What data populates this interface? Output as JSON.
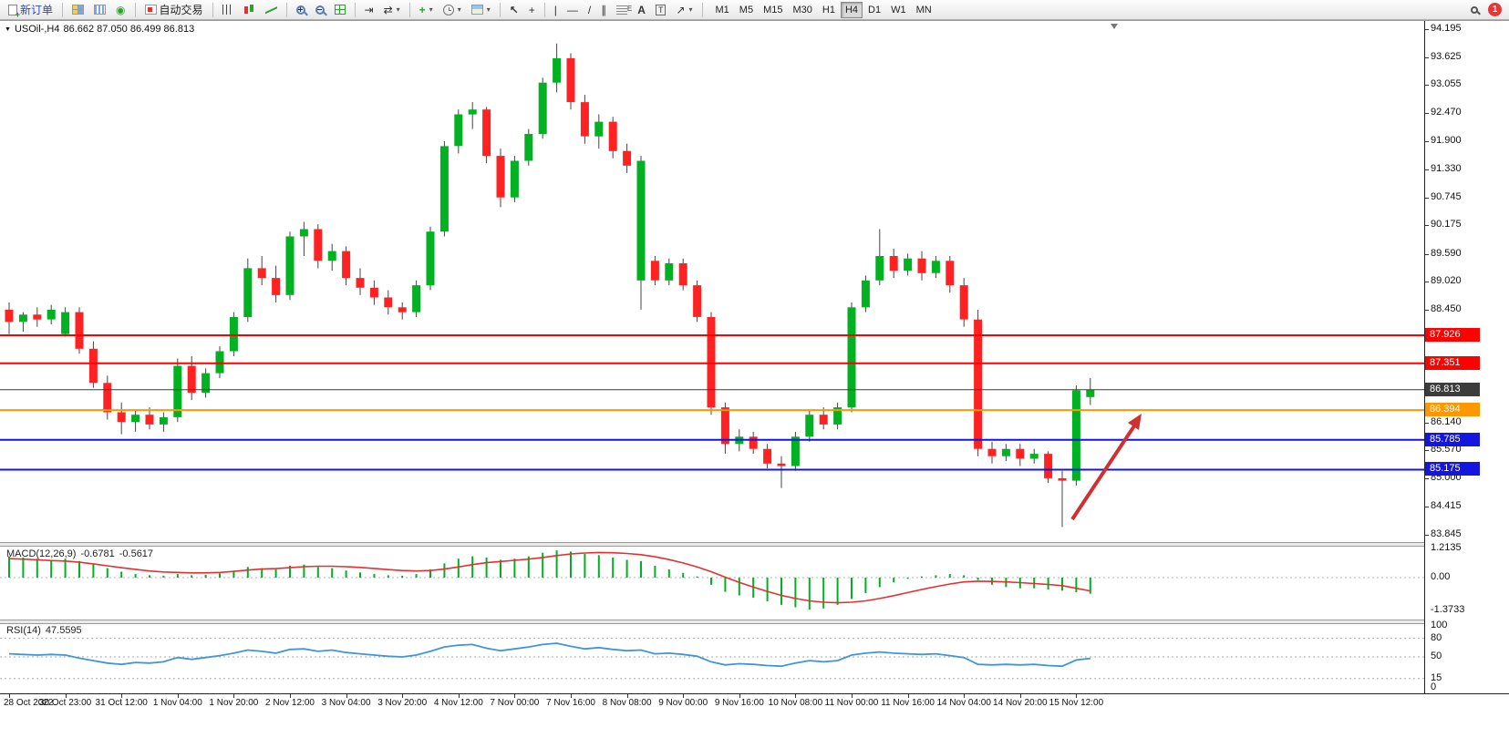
{
  "toolbar": {
    "new_order_label": "新订单",
    "autotrading_label": "自动交易",
    "text_tool_label": "A",
    "label_tool_label": "T",
    "timeframes": [
      "M1",
      "M5",
      "M15",
      "M30",
      "H1",
      "H4",
      "D1",
      "W1",
      "MN"
    ],
    "active_timeframe": "H4",
    "notification_count": "1"
  },
  "chart": {
    "symbol_period": "USOil-,H4",
    "ohlc_text": "86.662 87.050 86.499 86.813"
  },
  "chart_data": {
    "type": "candlestick",
    "symbol": "USOil-",
    "timeframe": "H4",
    "current_bar": {
      "open": 86.662,
      "high": 87.05,
      "low": 86.499,
      "close": 86.813
    },
    "price_axis_labels": [
      "94.195",
      "93.625",
      "93.055",
      "92.470",
      "91.900",
      "91.330",
      "90.745",
      "90.175",
      "89.590",
      "89.020",
      "88.450",
      "86.140",
      "85.570",
      "85.000",
      "84.415",
      "83.845"
    ],
    "time_labels": [
      "28 Oct 2022",
      "30 Oct 23:00",
      "31 Oct 12:00",
      "1 Nov 04:00",
      "1 Nov 20:00",
      "2 Nov 12:00",
      "3 Nov 04:00",
      "3 Nov 20:00",
      "4 Nov 12:00",
      "7 Nov 00:00",
      "7 Nov 16:00",
      "8 Nov 08:00",
      "9 Nov 00:00",
      "9 Nov 16:00",
      "10 Nov 08:00",
      "11 Nov 00:00",
      "11 Nov 16:00",
      "14 Nov 04:00",
      "14 Nov 20:00",
      "15 Nov 12:00"
    ],
    "candles_ohlc": [
      [
        88.45,
        88.6,
        87.95,
        88.2
      ],
      [
        88.2,
        88.4,
        88.0,
        88.35
      ],
      [
        88.35,
        88.5,
        88.1,
        88.25
      ],
      [
        88.25,
        88.55,
        88.15,
        88.45
      ],
      [
        87.95,
        88.5,
        87.9,
        88.4
      ],
      [
        88.4,
        88.5,
        87.55,
        87.65
      ],
      [
        87.65,
        87.8,
        86.85,
        86.95
      ],
      [
        86.95,
        87.1,
        86.2,
        86.35
      ],
      [
        86.35,
        86.55,
        85.9,
        86.15
      ],
      [
        86.15,
        86.4,
        85.95,
        86.3
      ],
      [
        86.3,
        86.45,
        86.0,
        86.1
      ],
      [
        86.1,
        86.35,
        85.95,
        86.25
      ],
      [
        86.25,
        87.45,
        86.15,
        87.3
      ],
      [
        87.3,
        87.5,
        86.6,
        86.75
      ],
      [
        86.75,
        87.25,
        86.65,
        87.15
      ],
      [
        87.15,
        87.7,
        87.05,
        87.6
      ],
      [
        87.6,
        88.4,
        87.5,
        88.3
      ],
      [
        88.3,
        89.5,
        88.2,
        89.3
      ],
      [
        89.3,
        89.55,
        88.95,
        89.1
      ],
      [
        89.1,
        89.35,
        88.6,
        88.75
      ],
      [
        88.75,
        90.05,
        88.65,
        89.95
      ],
      [
        89.95,
        90.25,
        89.55,
        90.1
      ],
      [
        90.1,
        90.2,
        89.3,
        89.45
      ],
      [
        89.45,
        89.8,
        89.25,
        89.65
      ],
      [
        89.65,
        89.75,
        88.95,
        89.1
      ],
      [
        89.1,
        89.3,
        88.75,
        88.9
      ],
      [
        88.9,
        89.05,
        88.55,
        88.7
      ],
      [
        88.7,
        88.85,
        88.35,
        88.5
      ],
      [
        88.5,
        88.6,
        88.25,
        88.4
      ],
      [
        88.4,
        89.05,
        88.3,
        88.95
      ],
      [
        88.95,
        90.15,
        88.85,
        90.05
      ],
      [
        90.05,
        91.9,
        89.95,
        91.8
      ],
      [
        91.8,
        92.55,
        91.65,
        92.45
      ],
      [
        92.45,
        92.7,
        92.15,
        92.55
      ],
      [
        92.55,
        92.6,
        91.45,
        91.6
      ],
      [
        91.6,
        91.75,
        90.55,
        90.75
      ],
      [
        90.75,
        91.6,
        90.65,
        91.5
      ],
      [
        91.5,
        92.15,
        91.4,
        92.05
      ],
      [
        92.05,
        93.2,
        91.95,
        93.1
      ],
      [
        93.1,
        93.9,
        92.9,
        93.6
      ],
      [
        93.6,
        93.7,
        92.55,
        92.7
      ],
      [
        92.7,
        92.85,
        91.85,
        92.0
      ],
      [
        92.0,
        92.45,
        91.75,
        92.3
      ],
      [
        92.3,
        92.4,
        91.55,
        91.7
      ],
      [
        91.7,
        91.85,
        91.25,
        91.4
      ],
      [
        89.05,
        91.6,
        88.45,
        91.5
      ],
      [
        89.45,
        89.55,
        88.95,
        89.05
      ],
      [
        89.05,
        89.5,
        88.95,
        89.4
      ],
      [
        89.4,
        89.5,
        88.85,
        88.95
      ],
      [
        88.95,
        89.05,
        88.2,
        88.3
      ],
      [
        88.3,
        88.4,
        86.3,
        86.45
      ],
      [
        86.45,
        86.55,
        85.5,
        85.7
      ],
      [
        85.7,
        86.0,
        85.55,
        85.85
      ],
      [
        85.85,
        85.95,
        85.5,
        85.6
      ],
      [
        85.6,
        85.7,
        85.2,
        85.3
      ],
      [
        85.3,
        85.45,
        84.8,
        85.25
      ],
      [
        85.25,
        85.95,
        85.15,
        85.85
      ],
      [
        85.85,
        86.4,
        85.75,
        86.3
      ],
      [
        86.3,
        86.45,
        86.0,
        86.1
      ],
      [
        86.1,
        86.55,
        86.0,
        86.45
      ],
      [
        86.45,
        88.6,
        86.35,
        88.5
      ],
      [
        88.5,
        89.15,
        88.4,
        89.05
      ],
      [
        89.05,
        90.1,
        88.95,
        89.55
      ],
      [
        89.55,
        89.7,
        89.1,
        89.25
      ],
      [
        89.25,
        89.6,
        89.15,
        89.5
      ],
      [
        89.5,
        89.65,
        89.05,
        89.2
      ],
      [
        89.2,
        89.55,
        89.1,
        89.45
      ],
      [
        89.45,
        89.55,
        88.8,
        88.95
      ],
      [
        88.95,
        89.1,
        88.1,
        88.25
      ],
      [
        88.25,
        88.45,
        85.45,
        85.6
      ],
      [
        85.6,
        85.75,
        85.3,
        85.45
      ],
      [
        85.45,
        85.7,
        85.35,
        85.6
      ],
      [
        85.6,
        85.7,
        85.25,
        85.4
      ],
      [
        85.4,
        85.6,
        85.3,
        85.5
      ],
      [
        85.5,
        85.55,
        84.9,
        85.0
      ],
      [
        85.0,
        85.15,
        84.0,
        84.95
      ],
      [
        84.95,
        86.9,
        84.85,
        86.8
      ],
      [
        86.662,
        87.05,
        86.499,
        86.813
      ]
    ],
    "horizontal_lines": [
      {
        "label": "87.926",
        "price": 87.926,
        "color": "#FF0000",
        "type": "resistance"
      },
      {
        "label": "87.351",
        "price": 87.351,
        "color": "#FF0000",
        "type": "resistance"
      },
      {
        "label": "86.813",
        "price": 86.813,
        "color": "#3C3C3C",
        "type": "current-price"
      },
      {
        "label": "86.394",
        "price": 86.394,
        "color": "#FF9800",
        "type": "level"
      },
      {
        "label": "85.785",
        "price": 85.785,
        "color": "#1515E0",
        "type": "support"
      },
      {
        "label": "85.175",
        "price": 85.175,
        "color": "#1515E0",
        "type": "support"
      }
    ],
    "colors": {
      "bull": "#00B222",
      "bear": "#FF2222",
      "wick": "#444444",
      "macd_hist": "#00B222",
      "macd_signal": "#E53030",
      "rsi_line": "#4095D8",
      "arrow": "#D03030"
    },
    "macd": {
      "name": "MACD(12,26,9)",
      "value_main": "-0.6781",
      "value_signal": "-0.5617",
      "axis_labels": [
        "1.2135",
        "0.00",
        "-1.3733"
      ],
      "axis_values": [
        1.2135,
        0,
        -1.3733
      ],
      "histogram": [
        0.9,
        0.85,
        0.8,
        0.75,
        0.8,
        0.7,
        0.55,
        0.4,
        0.25,
        0.15,
        0.1,
        0.08,
        0.15,
        0.1,
        0.12,
        0.18,
        0.3,
        0.45,
        0.4,
        0.35,
        0.5,
        0.55,
        0.45,
        0.4,
        0.3,
        0.22,
        0.15,
        0.1,
        0.08,
        0.15,
        0.35,
        0.6,
        0.8,
        0.9,
        0.85,
        0.75,
        0.8,
        0.9,
        1.05,
        1.15,
        1.1,
        1.0,
        0.95,
        0.85,
        0.75,
        0.7,
        0.5,
        0.35,
        0.2,
        0.05,
        -0.3,
        -0.6,
        -0.75,
        -0.85,
        -1.0,
        -1.15,
        -1.25,
        -1.35,
        -1.3,
        -1.15,
        -0.9,
        -0.65,
        -0.4,
        -0.2,
        -0.05,
        0.05,
        0.1,
        0.15,
        0.1,
        -0.1,
        -0.3,
        -0.4,
        -0.45,
        -0.45,
        -0.5,
        -0.55,
        -0.62,
        -0.68
      ],
      "signal": [
        0.8,
        0.78,
        0.75,
        0.72,
        0.7,
        0.65,
        0.58,
        0.5,
        0.42,
        0.35,
        0.28,
        0.24,
        0.22,
        0.2,
        0.2,
        0.22,
        0.26,
        0.32,
        0.36,
        0.38,
        0.42,
        0.46,
        0.48,
        0.48,
        0.46,
        0.43,
        0.39,
        0.34,
        0.3,
        0.28,
        0.3,
        0.36,
        0.45,
        0.55,
        0.63,
        0.68,
        0.73,
        0.78,
        0.85,
        0.93,
        1.0,
        1.04,
        1.06,
        1.05,
        1.02,
        0.97,
        0.88,
        0.76,
        0.62,
        0.45,
        0.25,
        0.02,
        -0.2,
        -0.4,
        -0.58,
        -0.75,
        -0.88,
        -0.98,
        -1.04,
        -1.06,
        -1.04,
        -0.98,
        -0.88,
        -0.76,
        -0.63,
        -0.5,
        -0.38,
        -0.27,
        -0.18,
        -0.15,
        -0.16,
        -0.18,
        -0.21,
        -0.25,
        -0.29,
        -0.34,
        -0.45,
        -0.56
      ]
    },
    "rsi": {
      "name": "RSI(14)",
      "value": "47.5595",
      "axis_labels": [
        "100",
        "80",
        "50",
        "15",
        "0"
      ],
      "axis_values": [
        100,
        80,
        50,
        15,
        0
      ],
      "levels": [
        80,
        50,
        15
      ],
      "values": [
        55,
        54,
        53,
        54,
        53,
        48,
        44,
        40,
        38,
        41,
        40,
        42,
        49,
        46,
        49,
        52,
        56,
        61,
        59,
        56,
        62,
        63,
        59,
        61,
        57,
        55,
        53,
        51,
        50,
        53,
        59,
        66,
        69,
        70,
        64,
        60,
        63,
        66,
        70,
        72,
        67,
        63,
        65,
        62,
        60,
        61,
        55,
        56,
        54,
        51,
        42,
        37,
        39,
        38,
        36,
        35,
        40,
        44,
        42,
        44,
        53,
        56,
        58,
        56,
        55,
        54,
        55,
        52,
        49,
        38,
        37,
        38,
        37,
        38,
        36,
        35,
        45,
        47.56
      ]
    },
    "annotation_arrow": {
      "direction": "up-right",
      "color": "#D03030"
    }
  }
}
